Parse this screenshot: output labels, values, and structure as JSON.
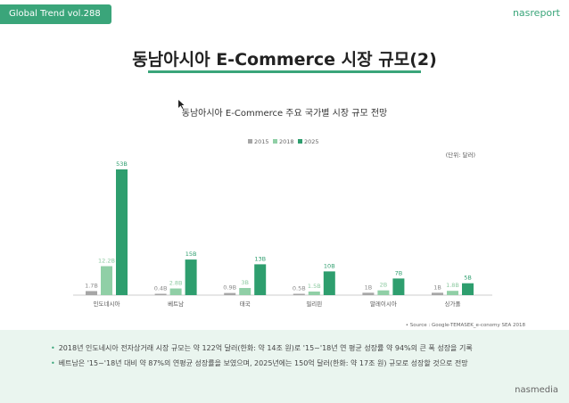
{
  "header": {
    "badge": "Global Trend vol.288",
    "brand": "nasreport",
    "title": "동남아시아 E-Commerce 시장 규모(2)"
  },
  "chart_data": {
    "type": "bar",
    "title": "동남아시아 E-Commerce 주요 국가별 시장 규모 전망",
    "unit_note": "(단위: 달러)",
    "categories": [
      "인도네시아",
      "베트남",
      "태국",
      "필리핀",
      "말레이시아",
      "싱가폴"
    ],
    "series": [
      {
        "name": "2015",
        "color": "#a6a6a6",
        "values": [
          1.7,
          0.4,
          0.9,
          0.5,
          1.0,
          1.0
        ],
        "labels": [
          "1.7B",
          "0.4B",
          "0.9B",
          "0.5B",
          "1B",
          "1B"
        ]
      },
      {
        "name": "2018",
        "color": "#90cfa6",
        "values": [
          12.2,
          2.8,
          3.0,
          1.5,
          2.0,
          1.8
        ],
        "labels": [
          "12.2B",
          "2.8B",
          "3B",
          "1.5B",
          "2B",
          "1.8B"
        ]
      },
      {
        "name": "2025",
        "color": "#2e9e6e",
        "values": [
          53,
          15,
          13,
          10,
          7,
          5
        ],
        "labels": [
          "53B",
          "15B",
          "13B",
          "10B",
          "7B",
          "5B"
        ]
      }
    ],
    "legend_position": "top-center",
    "grid": false,
    "ylim": [
      0,
      55
    ]
  },
  "source": "• Source : Google-TEMASEK_e-conomy SEA 2018",
  "notes": [
    "2018년 인도네시아 전자상거래 시장 규모는 약 122억 달러(한화: 약 14조 원)로 '15~'18년 연 평균 성장률 약 94%의 큰 폭 성장을 기록",
    "베트남은 '15~'18년 대비 약 87%의 연평균 성장률을 보였으며, 2025년에는 150억 달러(한화: 약 17조 원) 규모로 성장할 것으로 전망"
  ],
  "footer_brand": "nasmedia",
  "icons": {
    "cursor": "cursor-icon"
  }
}
